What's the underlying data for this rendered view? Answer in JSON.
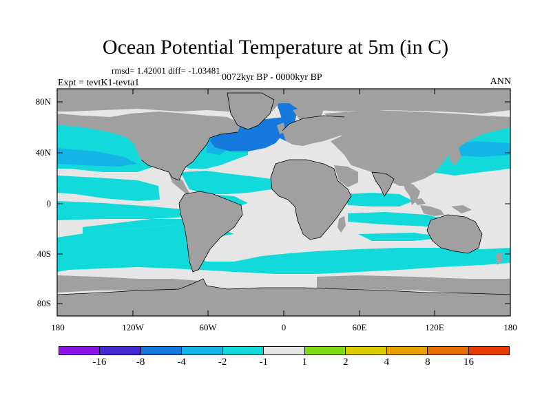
{
  "title": "Ocean Potential Temperature at 5m (in C)",
  "stats": "rmsd= 1.42001 diff= -1.03481",
  "subtitle": "0072kyr BP - 0000kyr BP",
  "experiment": "Expt = tevtK1-tevta1",
  "season": "ANN",
  "colors": {
    "land": "#a0a0a0",
    "near_zero": "#e6e6e6",
    "cyan": "#12dada",
    "light_blue": "#14b4e6",
    "blue": "#1478dc"
  },
  "y_axis_labels": [
    "80N",
    "40N",
    "0",
    "40S",
    "80S"
  ],
  "x_axis_labels": [
    "180",
    "120W",
    "60W",
    "0",
    "60E",
    "120E",
    "180"
  ],
  "colorbar": {
    "colors": [
      "#8c14e6",
      "#4628d2",
      "#1478dc",
      "#14b4e6",
      "#12dada",
      "#e6e6e6",
      "#82dc14",
      "#dccd00",
      "#e6a000",
      "#e66e00",
      "#e63c00"
    ],
    "labels": [
      "-16",
      "-8",
      "-4",
      "-2",
      "-1",
      "1",
      "2",
      "4",
      "8",
      "16"
    ]
  }
}
